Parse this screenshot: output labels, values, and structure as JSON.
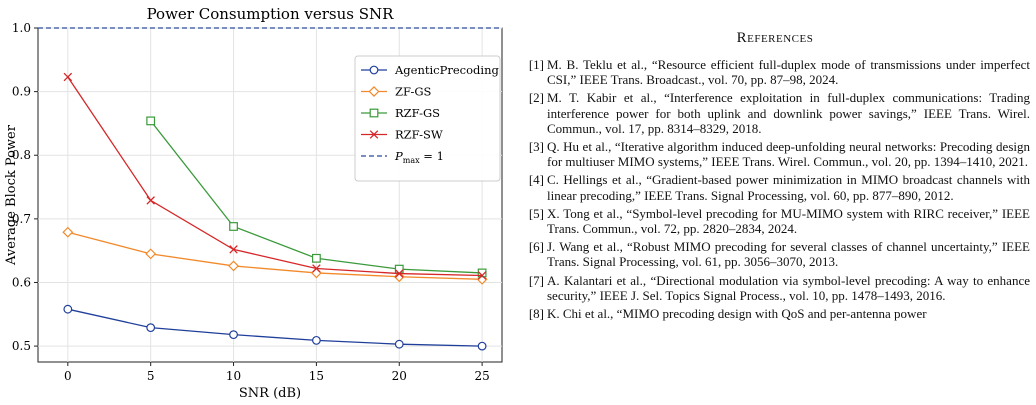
{
  "chart_data": {
    "type": "line",
    "title": "Power Consumption versus SNR",
    "xlabel": "SNR (dB)",
    "ylabel": "Average Block Power",
    "x_ticks": [
      "0",
      "5",
      "10",
      "15",
      "20",
      "25"
    ],
    "y_ticks": [
      "0.5",
      "0.6",
      "0.7",
      "0.8",
      "0.9",
      "1.0"
    ],
    "xlim": [
      -1.8,
      26.2
    ],
    "ylim": [
      0.475,
      1.0
    ],
    "grid": true,
    "legend_position": "upper right",
    "series": [
      {
        "name": "AgenticPrecoding",
        "color": "#1f3f9a",
        "marker": "circle",
        "x": [
          0,
          5,
          10,
          15,
          20,
          25
        ],
        "values": [
          0.558,
          0.529,
          0.518,
          0.509,
          0.503,
          0.5
        ]
      },
      {
        "name": "ZF-GS",
        "color": "#f28a2b",
        "marker": "diamond",
        "x": [
          0,
          5,
          10,
          15,
          20,
          25
        ],
        "values": [
          0.679,
          0.645,
          0.626,
          0.615,
          0.609,
          0.605
        ]
      },
      {
        "name": "RZF-GS",
        "color": "#3a9a3a",
        "marker": "square",
        "x": [
          5,
          10,
          15,
          20,
          25
        ],
        "values": [
          0.854,
          0.688,
          0.638,
          0.621,
          0.615
        ]
      },
      {
        "name": "RZF-SW",
        "color": "#d62728",
        "marker": "x",
        "x": [
          0,
          5,
          10,
          15,
          20,
          25
        ],
        "values": [
          0.923,
          0.729,
          0.652,
          0.622,
          0.614,
          0.611
        ]
      }
    ],
    "reference_line": {
      "label": "P_max = 1",
      "label_main": "P",
      "label_sub": "max",
      "label_rest": " = 1",
      "value": 1.0,
      "color": "#2b4a9a",
      "style": "dashed"
    }
  },
  "references": {
    "heading": "References",
    "items": [
      {
        "num": "[1]",
        "text": "M. B. Teklu et al., “Resource efficient full-duplex mode of transmissions under imperfect CSI,” IEEE Trans. Broadcast., vol. 70, pp. 87–98, 2024."
      },
      {
        "num": "[2]",
        "text": "M. T. Kabir et al., “Interference exploitation in full-duplex communications: Trading interference power for both uplink and downlink power savings,” IEEE Trans. Wirel. Commun., vol. 17, pp. 8314–8329, 2018."
      },
      {
        "num": "[3]",
        "text": "Q. Hu et al., “Iterative algorithm induced deep-unfolding neural networks: Precoding design for multiuser MIMO systems,” IEEE Trans. Wirel. Commun., vol. 20, pp. 1394–1410, 2021."
      },
      {
        "num": "[4]",
        "text": "C. Hellings et al., “Gradient-based power minimization in MIMO broadcast channels with linear precoding,” IEEE Trans. Signal Processing, vol. 60, pp. 877–890, 2012."
      },
      {
        "num": "[5]",
        "text": "X. Tong et al., “Symbol-level precoding for MU-MIMO system with RIRC receiver,” IEEE Trans. Commun., vol. 72, pp. 2820–2834, 2024."
      },
      {
        "num": "[6]",
        "text": "J. Wang et al., “Robust MIMO precoding for several classes of channel uncertainty,” IEEE Trans. Signal Processing, vol. 61, pp. 3056–3070, 2013."
      },
      {
        "num": "[7]",
        "text": "A. Kalantari et al., “Directional modulation via symbol-level precoding: A way to enhance security,” IEEE J. Sel. Topics Signal Process., vol. 10, pp. 1478–1493, 2016."
      },
      {
        "num": "[8]",
        "text": "K. Chi et al., “MIMO precoding design with QoS and per-antenna power"
      }
    ]
  }
}
